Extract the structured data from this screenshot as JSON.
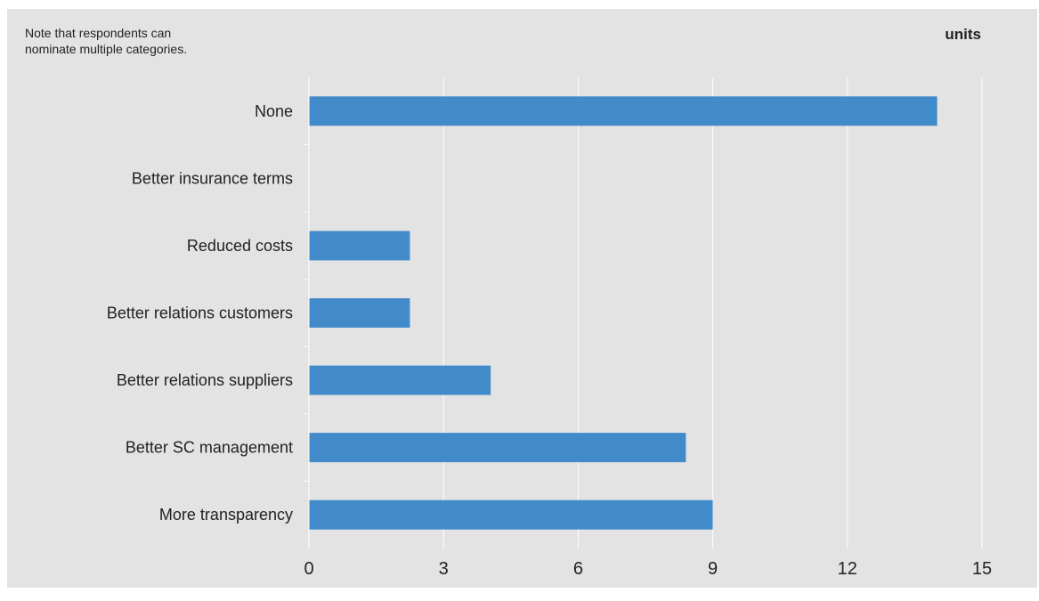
{
  "note": "Note that respondents can\nnominate multiple categories.",
  "chart_data": {
    "type": "bar",
    "orientation": "horizontal",
    "unit_label": "units",
    "categories": [
      "None",
      "Better insurance terms",
      "Reduced costs",
      "Better relations customers",
      "Better relations suppliers",
      "Better SC management",
      "More transparency"
    ],
    "values": [
      14,
      0,
      2.25,
      2.25,
      4.05,
      8.4,
      9
    ],
    "xlim": [
      0,
      15
    ],
    "xticks": [
      "0",
      "3",
      "6",
      "9",
      "12",
      "15"
    ],
    "title": "",
    "xlabel": "",
    "ylabel": "",
    "grid": true,
    "bar_color": "#428bca",
    "background_color": "#e3e3e3"
  }
}
